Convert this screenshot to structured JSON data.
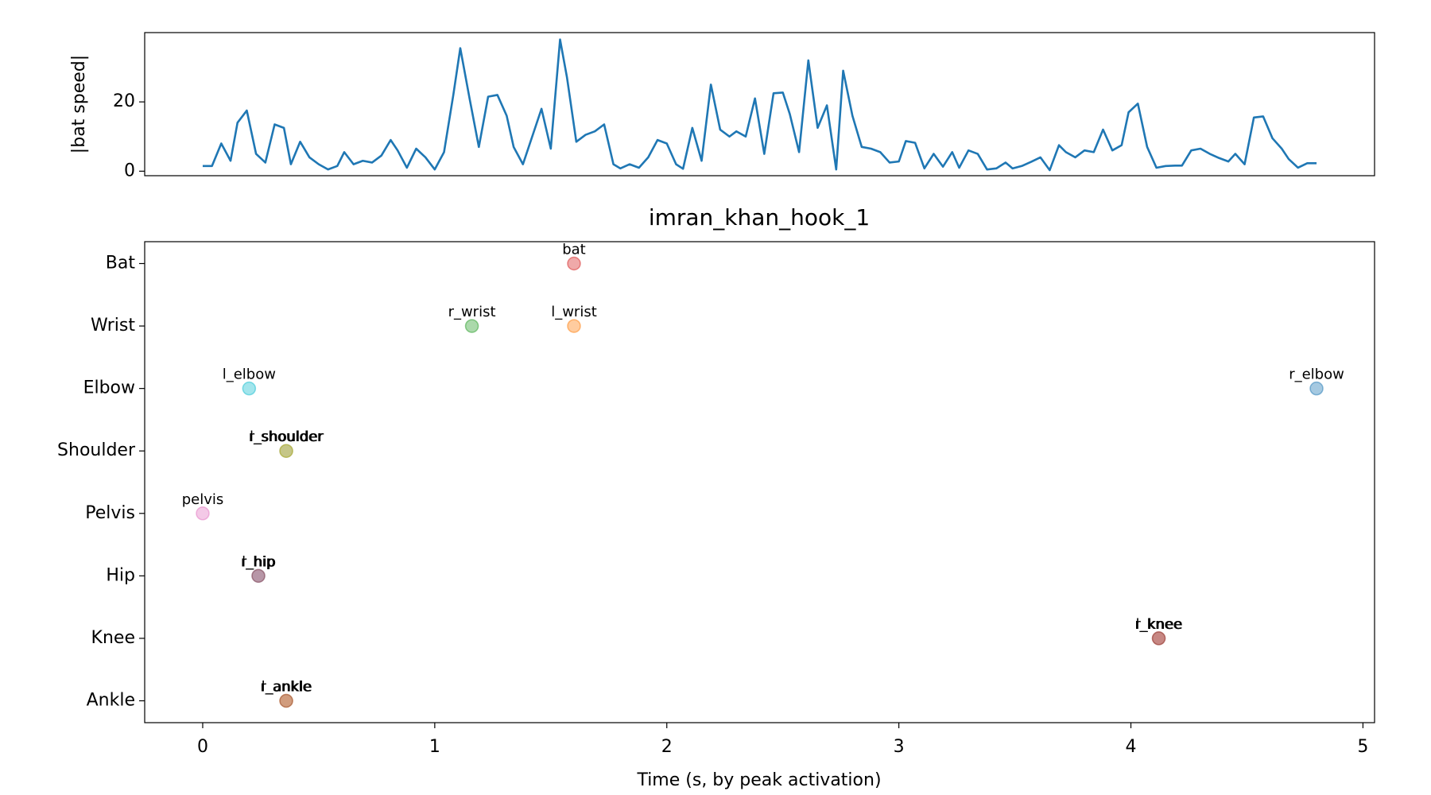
{
  "chart_data": [
    {
      "type": "line",
      "ylabel": "|bat speed|",
      "color": "#1f77b4",
      "xlim": [
        -0.25,
        5.05
      ],
      "ylim": [
        -1.3,
        40
      ],
      "yticks": [
        0,
        20
      ],
      "x": [
        0,
        0.04,
        0.08,
        0.12,
        0.15,
        0.19,
        0.23,
        0.27,
        0.31,
        0.35,
        0.38,
        0.42,
        0.46,
        0.5,
        0.54,
        0.58,
        0.61,
        0.65,
        0.69,
        0.73,
        0.77,
        0.81,
        0.84,
        0.88,
        0.92,
        0.96,
        1.0,
        1.04,
        1.08,
        1.11,
        1.15,
        1.19,
        1.23,
        1.27,
        1.31,
        1.34,
        1.38,
        1.42,
        1.46,
        1.5,
        1.54,
        1.57,
        1.61,
        1.65,
        1.69,
        1.73,
        1.77,
        1.8,
        1.84,
        1.88,
        1.92,
        1.96,
        2.0,
        2.04,
        2.07,
        2.11,
        2.15,
        2.19,
        2.23,
        2.27,
        2.3,
        2.34,
        2.38,
        2.42,
        2.46,
        2.5,
        2.53,
        2.57,
        2.61,
        2.65,
        2.69,
        2.73,
        2.76,
        2.8,
        2.84,
        2.88,
        2.92,
        2.96,
        3.0,
        3.03,
        3.07,
        3.11,
        3.15,
        3.19,
        3.23,
        3.26,
        3.3,
        3.34,
        3.38,
        3.42,
        3.46,
        3.49,
        3.53,
        3.57,
        3.61,
        3.65,
        3.69,
        3.72,
        3.76,
        3.8,
        3.84,
        3.88,
        3.92,
        3.96,
        3.99,
        4.03,
        4.07,
        4.11,
        4.15,
        4.19,
        4.22,
        4.26,
        4.3,
        4.34,
        4.38,
        4.42,
        4.45,
        4.49,
        4.53,
        4.57,
        4.61,
        4.65,
        4.68,
        4.72,
        4.76,
        4.8
      ],
      "values": [
        1.5,
        1.5,
        8,
        3,
        14,
        17.5,
        5,
        2.5,
        13.5,
        12.5,
        2,
        8.5,
        4,
        2,
        0.5,
        1.5,
        5.5,
        2,
        3,
        2.5,
        4.5,
        9,
        6,
        1,
        6.5,
        4,
        0.5,
        5.5,
        22,
        35.5,
        21,
        7,
        21.5,
        22,
        16,
        7,
        2,
        10,
        18,
        6.5,
        38,
        27,
        8.5,
        10.5,
        11.5,
        13.5,
        2,
        0.8,
        2,
        1,
        4,
        9,
        8,
        2,
        0.7,
        12.5,
        3,
        25,
        12,
        10,
        11.5,
        10,
        21,
        5,
        22.5,
        22.7,
        16.5,
        5.5,
        32,
        12.5,
        19,
        0.5,
        29,
        16,
        7,
        6.5,
        5.5,
        2.5,
        2.8,
        8.7,
        8.2,
        0.8,
        5,
        1.3,
        5.5,
        1,
        6,
        5,
        0.5,
        0.8,
        2.5,
        0.8,
        1.5,
        2.7,
        4,
        0.3,
        7.5,
        5.5,
        4,
        6,
        5.5,
        12,
        6,
        7.5,
        17,
        19.5,
        7,
        1,
        1.5,
        1.6,
        1.6,
        6,
        6.5,
        5,
        3.8,
        2.8,
        5,
        2,
        15.5,
        15.8,
        9.5,
        6.5,
        3.5,
        1,
        2.3,
        2.3
      ]
    },
    {
      "type": "scatter",
      "title": "imran_khan_hook_1",
      "xlabel": "Time (s, by peak activation)",
      "xlim": [
        -0.25,
        5.05
      ],
      "xticks": [
        0,
        1,
        2,
        3,
        4,
        5
      ],
      "categories": [
        "Bat",
        "Wrist",
        "Elbow",
        "Shoulder",
        "Pelvis",
        "Hip",
        "Knee",
        "Ankle"
      ],
      "points": [
        {
          "label": "bat",
          "category": "Bat",
          "x": 1.6,
          "color": "#d62728"
        },
        {
          "label": "r_wrist",
          "category": "Wrist",
          "x": 1.16,
          "color": "#2ca02c"
        },
        {
          "label": "l_wrist",
          "category": "Wrist",
          "x": 1.6,
          "color": "#ff7f0e"
        },
        {
          "label": "l_elbow",
          "category": "Elbow",
          "x": 0.2,
          "color": "#17becf"
        },
        {
          "label": "r_elbow",
          "category": "Elbow",
          "x": 4.8,
          "color": "#1f77b4"
        },
        {
          "label": "r_shoulder",
          "category": "Shoulder",
          "x": 0.36,
          "color": "#7f7f7f"
        },
        {
          "label": "l_shoulder",
          "category": "Shoulder",
          "x": 0.36,
          "color": "#bcbd22"
        },
        {
          "label": "pelvis",
          "category": "Pelvis",
          "x": 0,
          "color": "#e377c2"
        },
        {
          "label": "l_hip",
          "category": "Hip",
          "x": 0.24,
          "color": "#9467bd"
        },
        {
          "label": "r_hip",
          "category": "Hip",
          "x": 0.24,
          "color": "#8c564b"
        },
        {
          "label": "l_knee",
          "category": "Knee",
          "x": 4.12,
          "color": "#d62728"
        },
        {
          "label": "r_knee",
          "category": "Knee",
          "x": 4.12,
          "color": "#8c564b"
        },
        {
          "label": "l_ankle",
          "category": "Ankle",
          "x": 0.36,
          "color": "#ff7f0e"
        },
        {
          "label": "r_ankle",
          "category": "Ankle",
          "x": 0.36,
          "color": "#8c564b"
        }
      ]
    }
  ]
}
